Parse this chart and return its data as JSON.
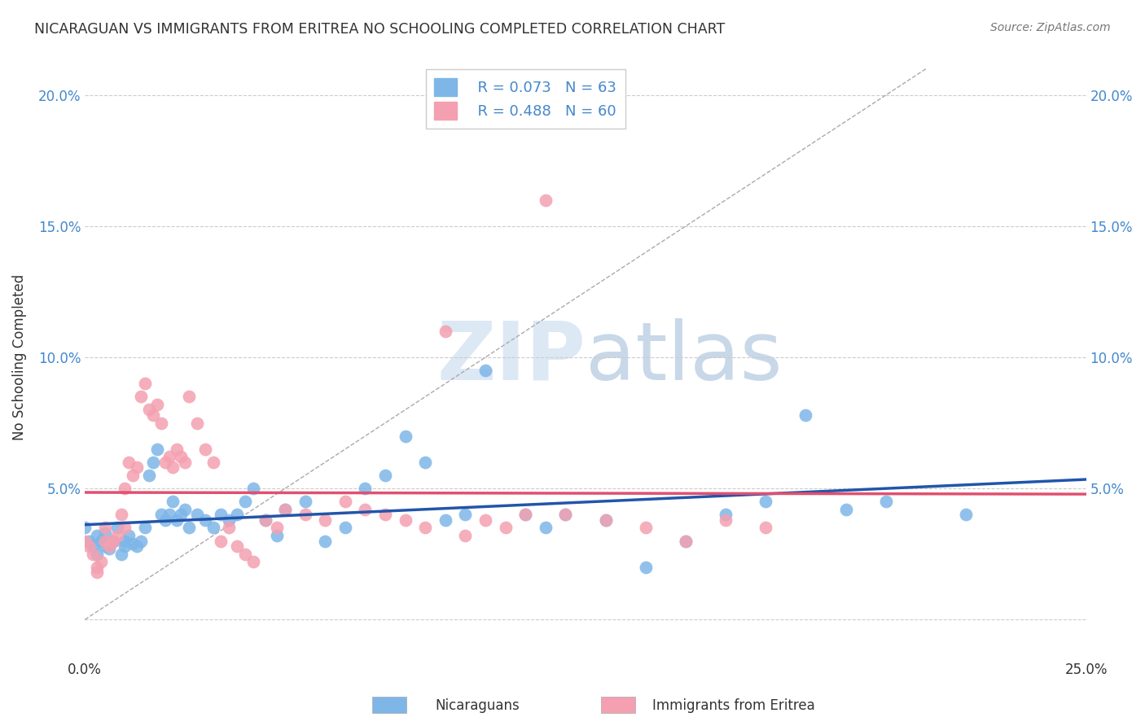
{
  "title": "NICARAGUAN VS IMMIGRANTS FROM ERITREA NO SCHOOLING COMPLETED CORRELATION CHART",
  "source": "Source: ZipAtlas.com",
  "ylabel": "No Schooling Completed",
  "legend_blue_r": "R = 0.073",
  "legend_blue_n": "N = 63",
  "legend_pink_r": "R = 0.488",
  "legend_pink_n": "N = 60",
  "legend_label_blue": "Nicaraguans",
  "legend_label_pink": "Immigrants from Eritrea",
  "xlim": [
    0.0,
    0.25
  ],
  "ylim": [
    -0.015,
    0.215
  ],
  "blue_color": "#7EB6E8",
  "pink_color": "#F4A0B0",
  "blue_line_color": "#2255AA",
  "pink_line_color": "#E05070",
  "blue_scatter_x": [
    0.0,
    0.001,
    0.002,
    0.003,
    0.003,
    0.004,
    0.005,
    0.005,
    0.006,
    0.007,
    0.008,
    0.009,
    0.01,
    0.01,
    0.011,
    0.012,
    0.013,
    0.014,
    0.015,
    0.016,
    0.017,
    0.018,
    0.019,
    0.02,
    0.021,
    0.022,
    0.023,
    0.024,
    0.025,
    0.026,
    0.028,
    0.03,
    0.032,
    0.034,
    0.036,
    0.038,
    0.04,
    0.042,
    0.045,
    0.048,
    0.05,
    0.055,
    0.06,
    0.065,
    0.07,
    0.075,
    0.08,
    0.085,
    0.09,
    0.095,
    0.1,
    0.11,
    0.115,
    0.12,
    0.13,
    0.14,
    0.15,
    0.16,
    0.17,
    0.18,
    0.19,
    0.2,
    0.22
  ],
  "blue_scatter_y": [
    0.035,
    0.03,
    0.028,
    0.032,
    0.025,
    0.03,
    0.028,
    0.033,
    0.027,
    0.03,
    0.035,
    0.025,
    0.03,
    0.028,
    0.032,
    0.029,
    0.028,
    0.03,
    0.035,
    0.055,
    0.06,
    0.065,
    0.04,
    0.038,
    0.04,
    0.045,
    0.038,
    0.04,
    0.042,
    0.035,
    0.04,
    0.038,
    0.035,
    0.04,
    0.038,
    0.04,
    0.045,
    0.05,
    0.038,
    0.032,
    0.042,
    0.045,
    0.03,
    0.035,
    0.05,
    0.055,
    0.07,
    0.06,
    0.038,
    0.04,
    0.095,
    0.04,
    0.035,
    0.04,
    0.038,
    0.02,
    0.03,
    0.04,
    0.045,
    0.078,
    0.042,
    0.045,
    0.04
  ],
  "pink_scatter_x": [
    0.0,
    0.001,
    0.002,
    0.003,
    0.003,
    0.004,
    0.005,
    0.005,
    0.006,
    0.007,
    0.008,
    0.009,
    0.01,
    0.01,
    0.011,
    0.012,
    0.013,
    0.014,
    0.015,
    0.016,
    0.017,
    0.018,
    0.019,
    0.02,
    0.021,
    0.022,
    0.023,
    0.024,
    0.025,
    0.026,
    0.028,
    0.03,
    0.032,
    0.034,
    0.036,
    0.038,
    0.04,
    0.042,
    0.045,
    0.048,
    0.05,
    0.055,
    0.06,
    0.065,
    0.07,
    0.075,
    0.08,
    0.085,
    0.09,
    0.095,
    0.1,
    0.105,
    0.11,
    0.115,
    0.12,
    0.13,
    0.14,
    0.15,
    0.16,
    0.17
  ],
  "pink_scatter_y": [
    0.03,
    0.028,
    0.025,
    0.02,
    0.018,
    0.022,
    0.035,
    0.03,
    0.028,
    0.03,
    0.032,
    0.04,
    0.035,
    0.05,
    0.06,
    0.055,
    0.058,
    0.085,
    0.09,
    0.08,
    0.078,
    0.082,
    0.075,
    0.06,
    0.062,
    0.058,
    0.065,
    0.062,
    0.06,
    0.085,
    0.075,
    0.065,
    0.06,
    0.03,
    0.035,
    0.028,
    0.025,
    0.022,
    0.038,
    0.035,
    0.042,
    0.04,
    0.038,
    0.045,
    0.042,
    0.04,
    0.038,
    0.035,
    0.11,
    0.032,
    0.038,
    0.035,
    0.04,
    0.16,
    0.04,
    0.038,
    0.035,
    0.03,
    0.038,
    0.035
  ]
}
